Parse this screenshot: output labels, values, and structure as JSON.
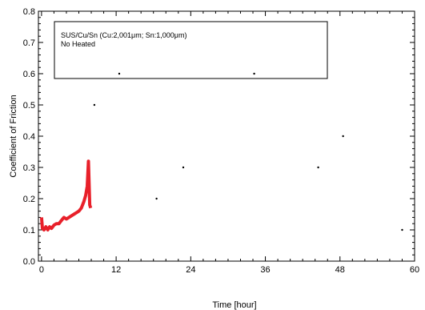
{
  "chart_data": {
    "type": "line",
    "title": "",
    "xlabel": "Time [hour]",
    "ylabel": "Coefficient of Friction",
    "xlim": [
      -0.5,
      60
    ],
    "ylim": [
      0.0,
      0.8
    ],
    "x_ticks": [
      0,
      12,
      24,
      36,
      48,
      60
    ],
    "x_tick_labels": [
      "0",
      "12",
      "24",
      "36",
      "48",
      "60"
    ],
    "y_ticks": [
      0.0,
      0.1,
      0.2,
      0.3,
      0.4,
      0.5,
      0.6,
      0.7,
      0.8
    ],
    "y_tick_labels": [
      "0.0",
      "0.1",
      "0.2",
      "0.3",
      "0.4",
      "0.5",
      "0.6",
      "0.7",
      "0.8"
    ],
    "grid": false,
    "legend": {
      "placement": "top-left",
      "lines": [
        "SUS/Cu/Sn (Cu:2,001μm; Sn:1,000μm)",
        "No Heated"
      ]
    },
    "series": [
      {
        "color": "#e8202a",
        "points": [
          [
            0.0,
            0.14
          ],
          [
            0.15,
            0.105
          ],
          [
            0.4,
            0.1
          ],
          [
            0.7,
            0.11
          ],
          [
            1.0,
            0.1
          ],
          [
            1.3,
            0.11
          ],
          [
            1.6,
            0.105
          ],
          [
            2.0,
            0.115
          ],
          [
            2.4,
            0.12
          ],
          [
            2.8,
            0.12
          ],
          [
            3.2,
            0.13
          ],
          [
            3.6,
            0.14
          ],
          [
            4.0,
            0.135
          ],
          [
            4.4,
            0.14
          ],
          [
            4.8,
            0.145
          ],
          [
            5.2,
            0.15
          ],
          [
            5.6,
            0.155
          ],
          [
            6.0,
            0.16
          ],
          [
            6.4,
            0.17
          ],
          [
            6.8,
            0.19
          ],
          [
            7.1,
            0.21
          ],
          [
            7.35,
            0.24
          ],
          [
            7.55,
            0.32
          ],
          [
            7.75,
            0.18
          ],
          [
            7.9,
            0.17
          ]
        ]
      }
    ],
    "scatter_markers": [
      {
        "x": 8.5,
        "y": 0.5
      },
      {
        "x": 12.5,
        "y": 0.6
      },
      {
        "x": 18.5,
        "y": 0.2
      },
      {
        "x": 22.8,
        "y": 0.3
      },
      {
        "x": 34.2,
        "y": 0.6
      },
      {
        "x": 44.5,
        "y": 0.3
      },
      {
        "x": 48.5,
        "y": 0.4
      },
      {
        "x": 58.0,
        "y": 0.1
      }
    ]
  }
}
